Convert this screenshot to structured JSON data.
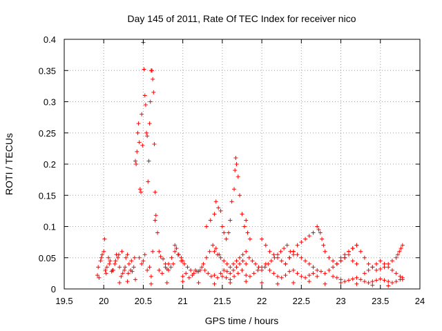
{
  "chart_data": {
    "type": "scatter",
    "title": "Day 145 of 2011, Rate Of TEC Index for receiver nico",
    "xlabel": "GPS time / hours",
    "ylabel": "ROTI / TECUs",
    "xlim": [
      19.5,
      24
    ],
    "ylim": [
      0,
      0.4
    ],
    "xticks": [
      "19.5",
      "20",
      "20.5",
      "21",
      "21.5",
      "22",
      "22.5",
      "23",
      "23.5",
      "24"
    ],
    "yticks": [
      "0",
      "0.05",
      "0.1",
      "0.15",
      "0.2",
      "0.25",
      "0.3",
      "0.35",
      "0.4"
    ],
    "grid": true,
    "marker": "+",
    "series": [
      {
        "name": "ROTI",
        "color": "#ff0000",
        "x": [
          19.92,
          19.94,
          19.96,
          19.98,
          20.0,
          20.01,
          20.02,
          20.04,
          20.06,
          20.08,
          20.1,
          20.12,
          20.14,
          20.16,
          20.18,
          20.2,
          20.22,
          20.24,
          20.26,
          20.28,
          20.3,
          20.32,
          20.34,
          20.36,
          20.38,
          19.93,
          19.97,
          20.03,
          20.07,
          20.11,
          20.15,
          20.19,
          20.23,
          20.27,
          20.31,
          20.35,
          20.39,
          20.4,
          20.41,
          20.42,
          20.43,
          20.44,
          20.45,
          20.46,
          20.47,
          20.48,
          20.49,
          20.5,
          20.51,
          20.52,
          20.53,
          20.54,
          20.55,
          20.56,
          20.57,
          20.58,
          20.59,
          20.6,
          20.61,
          20.62,
          20.63,
          20.64,
          20.65,
          20.66,
          20.45,
          20.48,
          20.5,
          20.52,
          20.55,
          20.58,
          20.6,
          20.62,
          20.65,
          20.68,
          20.7,
          20.72,
          20.75,
          20.78,
          20.8,
          20.82,
          20.85,
          20.88,
          20.9,
          20.92,
          20.95,
          20.98,
          21.0,
          20.7,
          20.74,
          20.78,
          20.82,
          20.86,
          20.9,
          20.94,
          20.98,
          21.02,
          21.06,
          21.1,
          21.14,
          21.18,
          21.22,
          21.26,
          21.3,
          21.34,
          21.38,
          21.42,
          21.46,
          21.0,
          21.04,
          21.08,
          21.12,
          21.16,
          21.2,
          21.24,
          21.28,
          21.32,
          21.36,
          21.4,
          21.44,
          21.48,
          21.52,
          21.56,
          21.6,
          21.64,
          21.68,
          21.72,
          21.76,
          21.8,
          21.3,
          21.35,
          21.4,
          21.42,
          21.45,
          21.48,
          21.5,
          21.52,
          21.55,
          21.58,
          21.6,
          21.62,
          21.65,
          21.66,
          21.67,
          21.68,
          21.7,
          21.72,
          21.75,
          21.78,
          21.8,
          21.82,
          21.85,
          21.4,
          21.44,
          21.48,
          21.52,
          21.56,
          21.6,
          21.64,
          21.68,
          21.72,
          21.76,
          21.8,
          21.84,
          21.88,
          21.92,
          21.96,
          22.0,
          22.04,
          22.08,
          22.12,
          22.16,
          22.2,
          22.24,
          22.28,
          22.32,
          22.36,
          22.4,
          21.5,
          21.55,
          21.6,
          21.65,
          21.7,
          21.75,
          21.8,
          21.85,
          21.9,
          21.95,
          22.0,
          22.05,
          22.1,
          22.15,
          22.2,
          22.25,
          22.3,
          22.35,
          22.4,
          22.45,
          22.5,
          22.55,
          22.6,
          22.65,
          22.7,
          22.0,
          22.05,
          22.1,
          22.15,
          22.2,
          22.25,
          22.3,
          22.35,
          22.4,
          22.45,
          22.5,
          22.55,
          22.6,
          22.65,
          22.7,
          22.75,
          22.8,
          22.85,
          22.9,
          22.95,
          23.0,
          23.05,
          23.1,
          23.15,
          23.2,
          22.3,
          22.35,
          22.4,
          22.45,
          22.5,
          22.55,
          22.6,
          22.65,
          22.7,
          22.72,
          22.74,
          22.76,
          22.78,
          22.8,
          22.85,
          22.9,
          22.95,
          23.0,
          23.05,
          23.1,
          23.15,
          23.2,
          22.9,
          22.95,
          23.0,
          23.05,
          23.1,
          23.15,
          23.2,
          23.25,
          23.3,
          23.35,
          23.4,
          23.45,
          23.5,
          23.55,
          23.6,
          23.65,
          23.7,
          23.75,
          23.78,
          23.0,
          23.05,
          23.1,
          23.15,
          23.2,
          23.25,
          23.3,
          23.35,
          23.4,
          23.45,
          23.5,
          23.55,
          23.6,
          23.65,
          23.7,
          23.72,
          23.74,
          23.76,
          23.78,
          23.3,
          23.35,
          23.4,
          23.45,
          23.5,
          23.55,
          23.6,
          23.65,
          23.7,
          23.75,
          23.78,
          20.2,
          20.3,
          20.4,
          20.6,
          20.8,
          21.0,
          21.2,
          21.4,
          21.6,
          21.8,
          22.0,
          22.2,
          22.4,
          22.6,
          22.8,
          23.0,
          23.2,
          23.4,
          23.6
        ],
        "y": [
          0.022,
          0.018,
          0.045,
          0.055,
          0.06,
          0.08,
          0.03,
          0.035,
          0.05,
          0.045,
          0.028,
          0.03,
          0.04,
          0.055,
          0.05,
          0.035,
          0.02,
          0.025,
          0.03,
          0.05,
          0.055,
          0.04,
          0.03,
          0.028,
          0.035,
          0.035,
          0.05,
          0.025,
          0.04,
          0.03,
          0.045,
          0.055,
          0.06,
          0.035,
          0.025,
          0.045,
          0.05,
          0.205,
          0.2,
          0.22,
          0.25,
          0.265,
          0.235,
          0.16,
          0.155,
          0.28,
          0.23,
          0.395,
          0.352,
          0.31,
          0.295,
          0.25,
          0.245,
          0.172,
          0.205,
          0.265,
          0.3,
          0.35,
          0.35,
          0.336,
          0.315,
          0.232,
          0.155,
          0.118,
          0.05,
          0.04,
          0.045,
          0.055,
          0.03,
          0.035,
          0.02,
          0.06,
          0.11,
          0.09,
          0.06,
          0.052,
          0.048,
          0.04,
          0.032,
          0.03,
          0.035,
          0.04,
          0.07,
          0.065,
          0.055,
          0.05,
          0.045,
          0.03,
          0.025,
          0.035,
          0.04,
          0.05,
          0.06,
          0.055,
          0.045,
          0.04,
          0.035,
          0.03,
          0.025,
          0.028,
          0.03,
          0.04,
          0.05,
          0.06,
          0.07,
          0.065,
          0.055,
          0.02,
          0.025,
          0.018,
          0.022,
          0.03,
          0.028,
          0.035,
          0.03,
          0.025,
          0.02,
          0.022,
          0.018,
          0.025,
          0.03,
          0.028,
          0.025,
          0.03,
          0.035,
          0.04,
          0.045,
          0.04,
          0.1,
          0.11,
          0.12,
          0.14,
          0.13,
          0.125,
          0.1,
          0.09,
          0.08,
          0.09,
          0.11,
          0.14,
          0.16,
          0.19,
          0.21,
          0.2,
          0.18,
          0.15,
          0.12,
          0.1,
          0.11,
          0.09,
          0.08,
          0.06,
          0.055,
          0.05,
          0.045,
          0.04,
          0.035,
          0.04,
          0.045,
          0.05,
          0.055,
          0.06,
          0.05,
          0.045,
          0.04,
          0.035,
          0.03,
          0.035,
          0.04,
          0.045,
          0.05,
          0.055,
          0.06,
          0.065,
          0.07,
          0.06,
          0.055,
          0.02,
          0.018,
          0.015,
          0.02,
          0.025,
          0.03,
          0.022,
          0.02,
          0.025,
          0.03,
          0.035,
          0.04,
          0.03,
          0.025,
          0.02,
          0.018,
          0.022,
          0.028,
          0.03,
          0.025,
          0.02,
          0.018,
          0.022,
          0.025,
          0.02,
          0.08,
          0.07,
          0.06,
          0.055,
          0.05,
          0.045,
          0.04,
          0.05,
          0.06,
          0.055,
          0.05,
          0.045,
          0.04,
          0.035,
          0.03,
          0.028,
          0.025,
          0.03,
          0.035,
          0.04,
          0.045,
          0.05,
          0.055,
          0.045,
          0.04,
          0.04,
          0.05,
          0.06,
          0.07,
          0.075,
          0.08,
          0.085,
          0.09,
          0.1,
          0.095,
          0.09,
          0.08,
          0.07,
          0.06,
          0.05,
          0.045,
          0.04,
          0.045,
          0.05,
          0.06,
          0.065,
          0.07,
          0.02,
          0.018,
          0.015,
          0.012,
          0.014,
          0.016,
          0.018,
          0.015,
          0.012,
          0.01,
          0.012,
          0.014,
          0.016,
          0.014,
          0.012,
          0.01,
          0.012,
          0.015,
          0.018,
          0.05,
          0.055,
          0.06,
          0.065,
          0.07,
          0.06,
          0.05,
          0.04,
          0.035,
          0.03,
          0.032,
          0.035,
          0.04,
          0.045,
          0.05,
          0.055,
          0.06,
          0.065,
          0.07,
          0.025,
          0.03,
          0.035,
          0.04,
          0.045,
          0.04,
          0.035,
          0.03,
          0.025,
          0.02,
          0.015,
          0.01,
          0.012,
          0.015,
          0.008,
          0.01,
          0.012,
          0.01,
          0.008,
          0.01,
          0.012,
          0.01,
          0.008,
          0.01,
          0.012,
          0.008,
          0.01,
          0.008,
          0.006,
          0.005
        ]
      }
    ]
  }
}
